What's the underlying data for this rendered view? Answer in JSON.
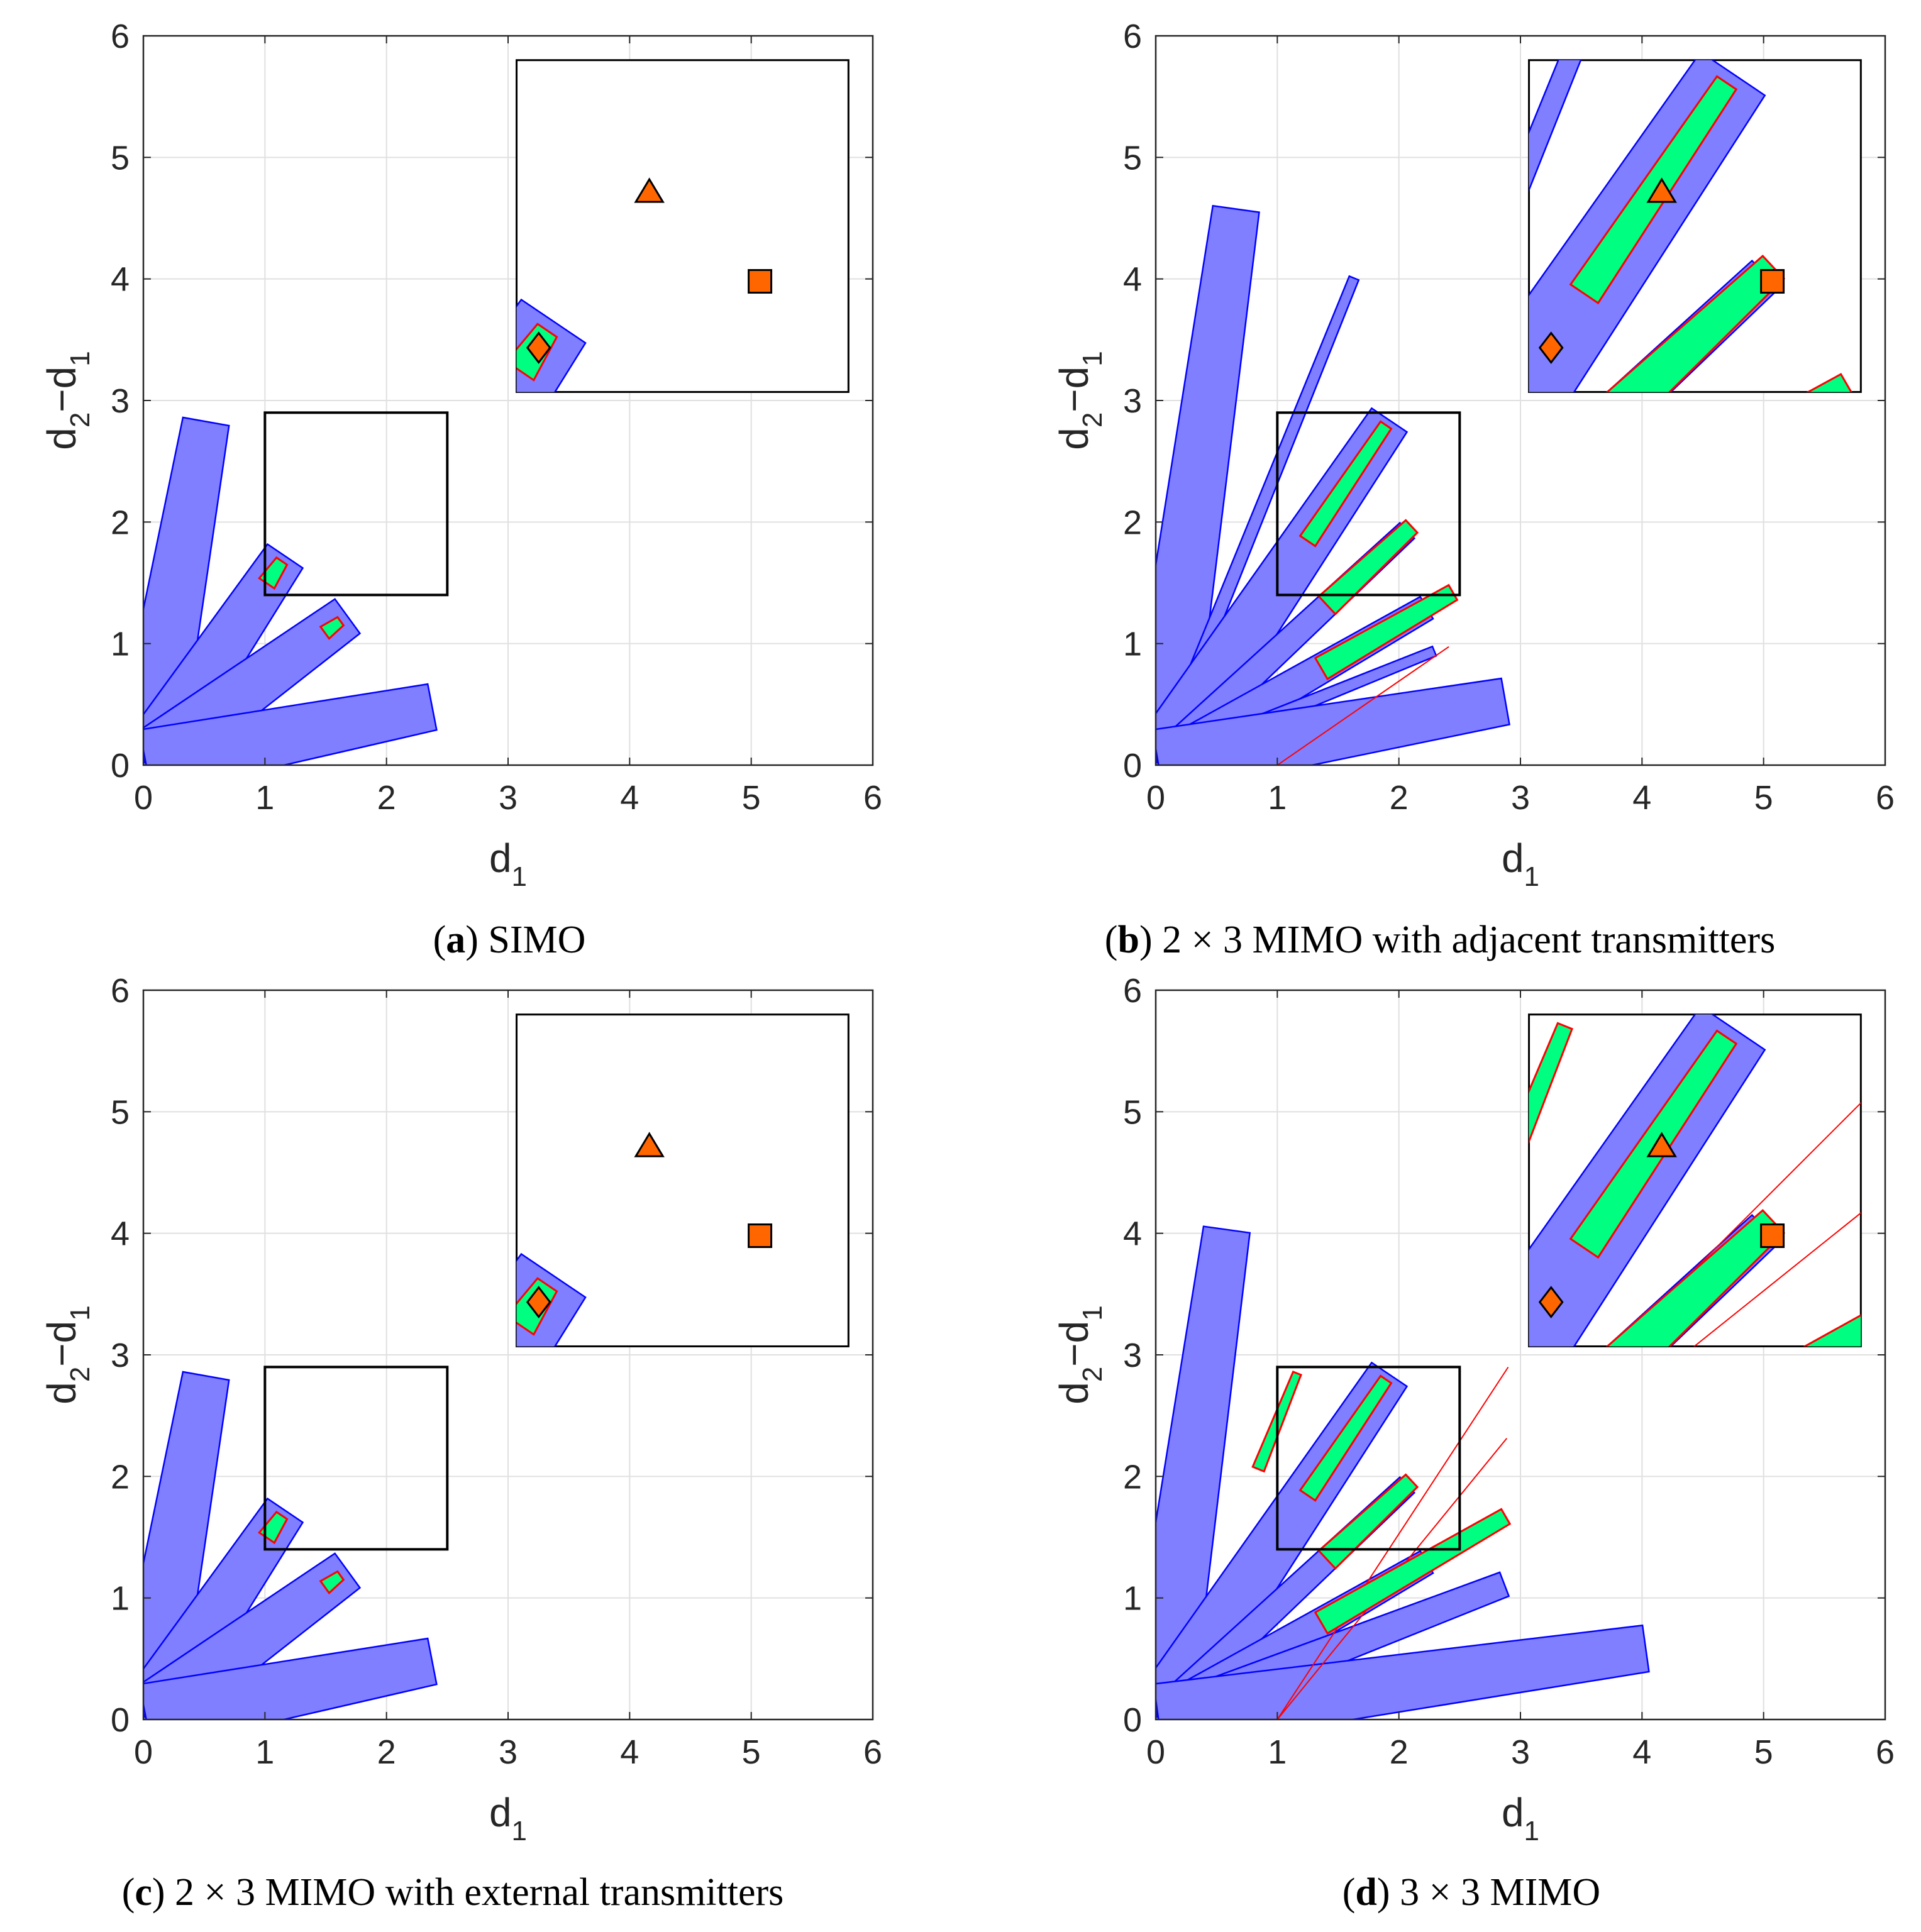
{
  "figure": {
    "panels": [
      {
        "id": "a",
        "letter": "a",
        "text": " SIMO"
      },
      {
        "id": "b",
        "letter": "b",
        "text": " 2 × 3 MIMO with adjacent transmitters"
      },
      {
        "id": "c",
        "letter": "c",
        "text": " 2 × 3 MIMO with external transmitters"
      },
      {
        "id": "d",
        "letter": "d",
        "text": " 3 × 3 MIMO"
      }
    ]
  },
  "chart_data": {
    "type": "region-plot",
    "xlabel_main": "d",
    "xlabel_sub": "1",
    "ylabel_main": "d",
    "ylabel_sub1": "2",
    "ylabel_dash": "−d",
    "ylabel_sub2": "1",
    "xlim": [
      0,
      6
    ],
    "ylim": [
      0,
      6
    ],
    "xticks": [
      "0",
      "1",
      "2",
      "3",
      "4",
      "5",
      "6"
    ],
    "yticks": [
      "0",
      "1",
      "2",
      "3",
      "4",
      "5",
      "6"
    ],
    "grid": true,
    "colors": {
      "region": "#7f7fff",
      "region_edge": "#0000ff",
      "feasible": "#00ff80",
      "feasible_edge": "#ff0000",
      "marker": "#ff6600"
    },
    "zoom_box": {
      "x": [
        1.0,
        2.5
      ],
      "y": [
        1.4,
        2.9
      ]
    },
    "markers": [
      {
        "shape": "diamond",
        "d1": 1.1,
        "d2_minus_d1": 1.6
      },
      {
        "shape": "triangle",
        "d1": 1.6,
        "d2_minus_d1": 2.3
      },
      {
        "shape": "square",
        "d1": 2.1,
        "d2_minus_d1": 1.9
      }
    ],
    "panels": [
      {
        "id": "a",
        "blue_fingers": [
          {
            "ang": 80,
            "len": 2.85,
            "w": 0.55
          },
          {
            "ang": 56,
            "len": 2.05,
            "w": 0.5
          },
          {
            "ang": 36,
            "len": 2.05,
            "w": 0.5
          },
          {
            "ang": 11,
            "len": 2.4,
            "w": 0.55
          }
        ],
        "green": [
          {
            "ang": 56,
            "from": 1.78,
            "to": 2.0,
            "w": 0.15
          },
          {
            "ang": 36,
            "from": 1.82,
            "to": 1.98,
            "w": 0.12
          }
        ],
        "red_lines": []
      },
      {
        "id": "b",
        "blue_fingers": [
          {
            "ang": 82,
            "len": 4.6,
            "w": 0.55
          },
          {
            "ang": 68,
            "len": 4.3,
            "w": 0.12
          },
          {
            "ang": 56,
            "len": 3.4,
            "w": 0.5
          },
          {
            "ang": 43,
            "len": 2.8,
            "w": 0.25
          },
          {
            "ang": 30,
            "len": 2.55,
            "w": 0.3
          },
          {
            "ang": 22,
            "len": 2.45,
            "w": 0.12
          },
          {
            "ang": 10,
            "len": 2.9,
            "w": 0.55
          }
        ],
        "green": [
          {
            "ang": 56,
            "from": 2.2,
            "to": 3.35,
            "w": 0.15
          },
          {
            "ang": 43,
            "from": 1.9,
            "to": 2.85,
            "w": 0.2
          },
          {
            "ang": 30,
            "from": 1.55,
            "to": 2.8,
            "w": 0.2
          }
        ],
        "red_lines": [
          {
            "ang": 22,
            "len": 2.6
          }
        ]
      },
      {
        "id": "c",
        "blue_fingers": [
          {
            "ang": 80,
            "len": 2.85,
            "w": 0.55
          },
          {
            "ang": 56,
            "len": 2.05,
            "w": 0.5
          },
          {
            "ang": 36,
            "len": 2.05,
            "w": 0.5
          },
          {
            "ang": 11,
            "len": 2.4,
            "w": 0.55
          }
        ],
        "green": [
          {
            "ang": 56,
            "from": 1.78,
            "to": 2.0,
            "w": 0.15
          },
          {
            "ang": 36,
            "from": 1.82,
            "to": 1.98,
            "w": 0.12
          }
        ],
        "red_lines": []
      },
      {
        "id": "d",
        "blue_fingers": [
          {
            "ang": 82,
            "len": 4.05,
            "w": 0.55
          },
          {
            "ang": 56,
            "len": 3.4,
            "w": 0.5
          },
          {
            "ang": 43,
            "len": 2.8,
            "w": 0.25
          },
          {
            "ang": 30,
            "len": 2.55,
            "w": 0.3
          },
          {
            "ang": 21,
            "len": 3.05,
            "w": 0.3
          },
          {
            "ang": 8,
            "len": 4.05,
            "w": 0.55
          }
        ],
        "green": [
          {
            "ang": 68,
            "from": 2.2,
            "to": 3.05,
            "w": 0.1
          },
          {
            "ang": 56,
            "from": 2.2,
            "to": 3.35,
            "w": 0.15
          },
          {
            "ang": 43,
            "from": 1.9,
            "to": 2.85,
            "w": 0.2
          },
          {
            "ang": 30,
            "from": 1.55,
            "to": 3.3,
            "w": 0.2
          }
        ],
        "red_lines": [
          {
            "ang": 45,
            "len": 4.1
          },
          {
            "ang": 38.7,
            "len": 3.7
          }
        ]
      }
    ]
  }
}
